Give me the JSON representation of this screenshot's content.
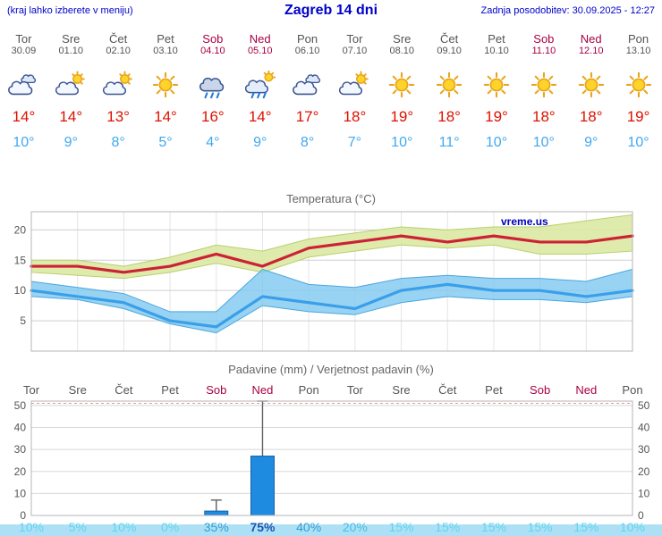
{
  "header": {
    "note": "(kraj lahko izberete v meniju)",
    "title": "Zagreb 14 dni",
    "updated": "Zadnja posodobitev: 30.09.2025 - 12:27"
  },
  "colors": {
    "header_blue": "#0000cc",
    "weekday_text": "#545454",
    "weekend_text": "#aa0044",
    "tmax_text": "#dd1100",
    "tmin_text": "#41a8f0",
    "footer_strip": "#aee0f5"
  },
  "days": [
    {
      "name": "Tor",
      "date": "30.09",
      "weekend": false,
      "icon": "cloudy",
      "tmax": "14°",
      "tmin": "10°"
    },
    {
      "name": "Sre",
      "date": "01.10",
      "weekend": false,
      "icon": "partly",
      "tmax": "14°",
      "tmin": "9°"
    },
    {
      "name": "Čet",
      "date": "02.10",
      "weekend": false,
      "icon": "partly",
      "tmax": "13°",
      "tmin": "8°"
    },
    {
      "name": "Pet",
      "date": "03.10",
      "weekend": false,
      "icon": "sunny",
      "tmax": "14°",
      "tmin": "5°"
    },
    {
      "name": "Sob",
      "date": "04.10",
      "weekend": true,
      "icon": "rain",
      "tmax": "16°",
      "tmin": "4°"
    },
    {
      "name": "Ned",
      "date": "05.10",
      "weekend": true,
      "icon": "showers",
      "tmax": "14°",
      "tmin": "9°"
    },
    {
      "name": "Pon",
      "date": "06.10",
      "weekend": false,
      "icon": "cloudy",
      "tmax": "17°",
      "tmin": "8°"
    },
    {
      "name": "Tor",
      "date": "07.10",
      "weekend": false,
      "icon": "partly",
      "tmax": "18°",
      "tmin": "7°"
    },
    {
      "name": "Sre",
      "date": "08.10",
      "weekend": false,
      "icon": "sunny",
      "tmax": "19°",
      "tmin": "10°"
    },
    {
      "name": "Čet",
      "date": "09.10",
      "weekend": false,
      "icon": "sunny",
      "tmax": "18°",
      "tmin": "11°"
    },
    {
      "name": "Pet",
      "date": "10.10",
      "weekend": false,
      "icon": "sunny",
      "tmax": "19°",
      "tmin": "10°"
    },
    {
      "name": "Sob",
      "date": "11.10",
      "weekend": true,
      "icon": "sunny",
      "tmax": "18°",
      "tmin": "10°"
    },
    {
      "name": "Ned",
      "date": "12.10",
      "weekend": true,
      "icon": "sunny",
      "tmax": "18°",
      "tmin": "9°"
    },
    {
      "name": "Pon",
      "date": "13.10",
      "weekend": false,
      "icon": "sunny",
      "tmax": "19°",
      "tmin": "10°"
    }
  ],
  "chart_data": [
    {
      "type": "line",
      "title": "Temperatura (°C)",
      "watermark": "vreme.us",
      "categories": [
        "Tor 30.09",
        "Sre 01.10",
        "Čet 02.10",
        "Pet 03.10",
        "Sob 04.10",
        "Ned 05.10",
        "Pon 06.10",
        "Tor 07.10",
        "Sre 08.10",
        "Čet 09.10",
        "Pet 10.10",
        "Sob 11.10",
        "Ned 12.10",
        "Pon 13.10"
      ],
      "ylim": [
        0,
        23
      ],
      "yticks": [
        5,
        10,
        15,
        20
      ],
      "grid": true,
      "series": [
        {
          "name": "temp-max",
          "color": "#cc2233",
          "values": [
            14,
            14,
            13,
            14,
            16,
            14,
            17,
            18,
            19,
            18,
            19,
            18,
            18,
            19
          ]
        },
        {
          "name": "temp-min",
          "color": "#3a9fe8",
          "values": [
            10,
            9,
            8,
            5,
            4,
            9,
            8,
            7,
            10,
            11,
            10,
            10,
            9,
            10
          ]
        }
      ],
      "bands": [
        {
          "name": "max-range",
          "color": "#dce9a3",
          "edge": "#b9cf6e",
          "upper": [
            15,
            15,
            14,
            15.5,
            17.5,
            16.5,
            18.5,
            19.5,
            20.5,
            20,
            20.5,
            20.5,
            21.5,
            22.5
          ],
          "lower": [
            13,
            12.5,
            12,
            13,
            14.5,
            13,
            15.5,
            16.5,
            17.5,
            17,
            17.5,
            16,
            16,
            16.5
          ]
        },
        {
          "name": "min-range",
          "color": "#7ec8f0",
          "edge": "#4aa6dd",
          "upper": [
            11.5,
            10.5,
            9.5,
            6.5,
            6.5,
            13.5,
            11,
            10.5,
            12,
            12.5,
            12,
            12,
            11.5,
            13.5
          ],
          "lower": [
            9,
            8.5,
            7,
            4.5,
            3,
            7.5,
            6.5,
            6,
            8,
            9,
            8.5,
            8.5,
            8,
            9
          ]
        }
      ]
    },
    {
      "type": "bar",
      "title": "Padavine (mm) / Verjetnost padavin (%)",
      "categories": [
        {
          "label": "Tor",
          "weekend": false
        },
        {
          "label": "Sre",
          "weekend": false
        },
        {
          "label": "Čet",
          "weekend": false
        },
        {
          "label": "Pet",
          "weekend": false
        },
        {
          "label": "Sob",
          "weekend": true
        },
        {
          "label": "Ned",
          "weekend": true
        },
        {
          "label": "Pon",
          "weekend": false
        },
        {
          "label": "Tor",
          "weekend": false
        },
        {
          "label": "Sre",
          "weekend": false
        },
        {
          "label": "Čet",
          "weekend": false
        },
        {
          "label": "Pet",
          "weekend": false
        },
        {
          "label": "Sob",
          "weekend": true
        },
        {
          "label": "Ned",
          "weekend": true
        },
        {
          "label": "Pon",
          "weekend": false
        }
      ],
      "values": [
        0,
        0,
        0,
        0,
        2,
        27,
        0,
        0,
        0,
        0,
        0,
        0,
        0,
        0
      ],
      "upper": [
        0,
        0,
        0,
        0,
        7,
        52,
        0,
        0,
        0,
        0,
        0,
        0,
        0,
        0
      ],
      "probabilities": [
        {
          "label": "10%",
          "color": "#5fd4ef",
          "strong": false
        },
        {
          "label": "5%",
          "color": "#5fd4ef",
          "strong": false
        },
        {
          "label": "10%",
          "color": "#5fd4ef",
          "strong": false
        },
        {
          "label": "0%",
          "color": "#5fd4ef",
          "strong": false
        },
        {
          "label": "35%",
          "color": "#2f9fd4",
          "strong": false
        },
        {
          "label": "75%",
          "color": "#1a55b0",
          "strong": true
        },
        {
          "label": "40%",
          "color": "#2f9fd4",
          "strong": false
        },
        {
          "label": "20%",
          "color": "#45bfe2",
          "strong": false
        },
        {
          "label": "15%",
          "color": "#5fd4ef",
          "strong": false
        },
        {
          "label": "15%",
          "color": "#5fd4ef",
          "strong": false
        },
        {
          "label": "15%",
          "color": "#5fd4ef",
          "strong": false
        },
        {
          "label": "15%",
          "color": "#5fd4ef",
          "strong": false
        },
        {
          "label": "15%",
          "color": "#5fd4ef",
          "strong": false
        },
        {
          "label": "10%",
          "color": "#5fd4ef",
          "strong": false
        }
      ],
      "ylim": [
        0,
        52
      ],
      "yticks": [
        0,
        10,
        20,
        30,
        40,
        50
      ],
      "bar_color": "#1e8be0",
      "bar_edge": "#1261a8",
      "threshold": 51
    }
  ]
}
